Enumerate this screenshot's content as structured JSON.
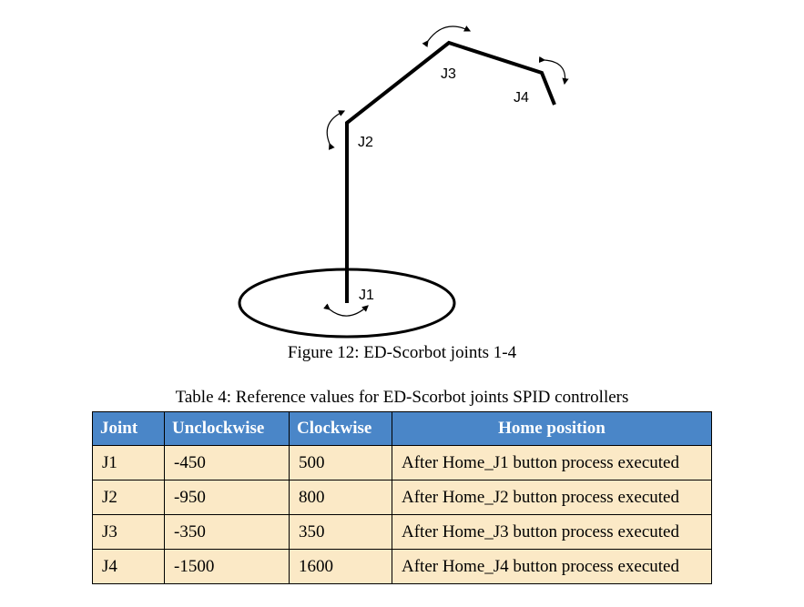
{
  "top_text": "",
  "figure": {
    "caption": "Figure 12: ED-Scorbot joints 1-4",
    "joint_labels": [
      "J1",
      "J2",
      "J3",
      "J4"
    ]
  },
  "table": {
    "caption": "Table 4: Reference values for ED-Scorbot joints SPID controllers",
    "headers": [
      "Joint",
      "Unclockwise",
      "Clockwise",
      "Home position"
    ],
    "rows": [
      [
        "J1",
        "-450",
        "500",
        "After Home_J1 button process executed"
      ],
      [
        "J2",
        "-950",
        "800",
        "After Home_J2 button process executed"
      ],
      [
        "J3",
        "-350",
        "350",
        "After Home_J3 button process executed"
      ],
      [
        "J4",
        "-1500",
        "1600",
        "After Home_J4 button process executed"
      ]
    ]
  },
  "colors": {
    "header_bg": "#4a86c8",
    "cell_bg": "#fbe9c6"
  }
}
